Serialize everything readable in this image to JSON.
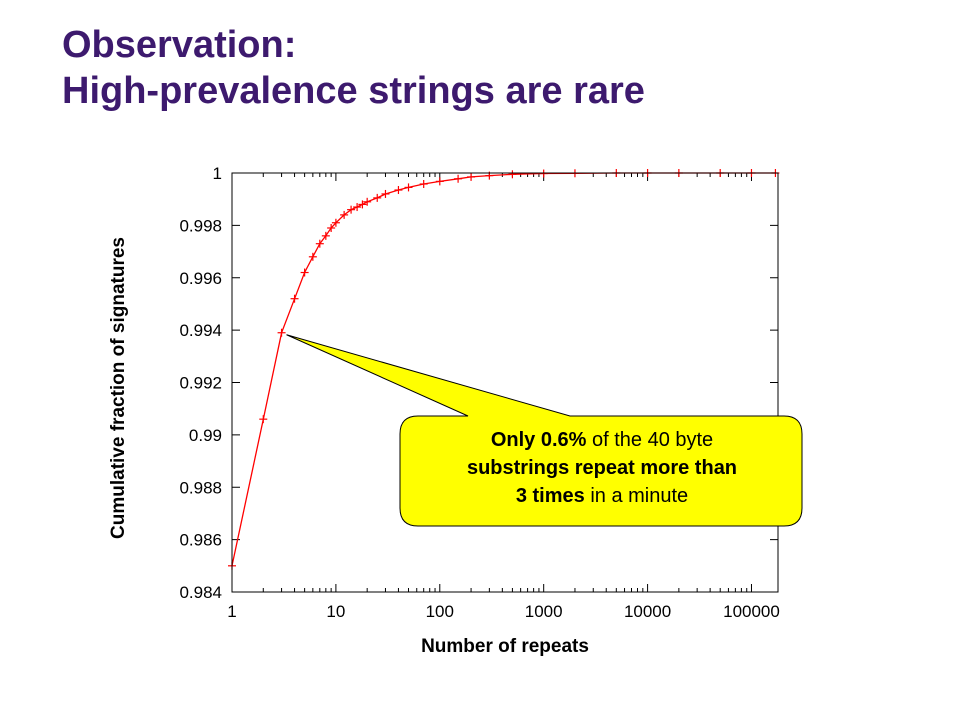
{
  "slide": {
    "title_line1": "Observation:",
    "title_line2": "High-prevalence strings are rare"
  },
  "chart_data": {
    "type": "line",
    "title": "",
    "xlabel": "Number of repeats",
    "ylabel": "Cumulative fraction of signatures",
    "x_scale": "log",
    "xlim": [
      1,
      180000
    ],
    "ylim": [
      0.984,
      1
    ],
    "x_ticks": [
      "1",
      "10",
      "100",
      "1000",
      "10000",
      "100000"
    ],
    "y_ticks": [
      "0.984",
      "0.986",
      "0.988",
      "0.99",
      "0.992",
      "0.994",
      "0.996",
      "0.998",
      "1"
    ],
    "grid": false,
    "marker": "+",
    "series_color": "#ff0000",
    "series": [
      {
        "x": [
          1,
          2,
          3,
          4,
          5,
          6,
          7,
          8,
          9,
          10,
          12,
          14,
          16,
          18,
          20,
          25,
          30,
          40,
          50,
          70,
          100,
          150,
          200,
          300,
          500,
          1000,
          2000,
          5000,
          10000,
          20000,
          50000,
          100000,
          170000
        ],
        "y": [
          0.985,
          0.9906,
          0.9939,
          0.9952,
          0.9962,
          0.9968,
          0.9973,
          0.9976,
          0.9979,
          0.9981,
          0.9984,
          0.9986,
          0.9987,
          0.9988,
          0.9989,
          0.99905,
          0.9992,
          0.99935,
          0.99945,
          0.99958,
          0.99968,
          0.99978,
          0.99985,
          0.9999,
          0.99995,
          0.99998,
          0.99999,
          1.0,
          1.0,
          1.0,
          1.0,
          1.0,
          1.0
        ]
      }
    ],
    "annotation": {
      "points_to": {
        "x": 3,
        "y": 0.9939
      },
      "fill": "#ffff00",
      "seg1_bold": "Only 0.6%",
      "seg2": " of the 40 byte",
      "seg3_bold": "substrings  repeat more than",
      "seg4_bold": "3 times",
      "seg5": " in a minute"
    }
  }
}
